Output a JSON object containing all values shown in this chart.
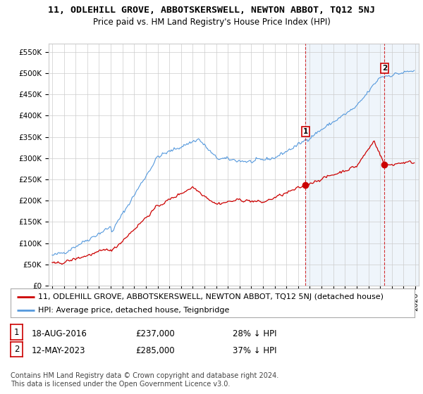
{
  "title": "11, ODLEHILL GROVE, ABBOTSKERSWELL, NEWTON ABBOT, TQ12 5NJ",
  "subtitle": "Price paid vs. HM Land Registry's House Price Index (HPI)",
  "ylabel_ticks": [
    "£0",
    "£50K",
    "£100K",
    "£150K",
    "£200K",
    "£250K",
    "£300K",
    "£350K",
    "£400K",
    "£450K",
    "£500K",
    "£550K"
  ],
  "ytick_values": [
    0,
    50000,
    100000,
    150000,
    200000,
    250000,
    300000,
    350000,
    400000,
    450000,
    500000,
    550000
  ],
  "ylim": [
    0,
    570000
  ],
  "xlim_start": 1994.7,
  "xlim_end": 2026.3,
  "hpi_color": "#5599dd",
  "hpi_fill_color": "#ddeeff",
  "price_color": "#cc0000",
  "marker1_year": 2016.63,
  "marker1_price": 237000,
  "marker2_year": 2023.37,
  "marker2_price": 285000,
  "legend_label_price": "11, ODLEHILL GROVE, ABBOTSKERSWELL, NEWTON ABBOT, TQ12 5NJ (detached house)",
  "legend_label_hpi": "HPI: Average price, detached house, Teignbridge",
  "footer": "Contains HM Land Registry data © Crown copyright and database right 2024.\nThis data is licensed under the Open Government Licence v3.0.",
  "background_color": "#ffffff",
  "grid_color": "#cccccc",
  "title_fontsize": 9.5,
  "subtitle_fontsize": 8.5,
  "tick_fontsize": 7.5,
  "legend_fontsize": 8,
  "footer_fontsize": 7
}
